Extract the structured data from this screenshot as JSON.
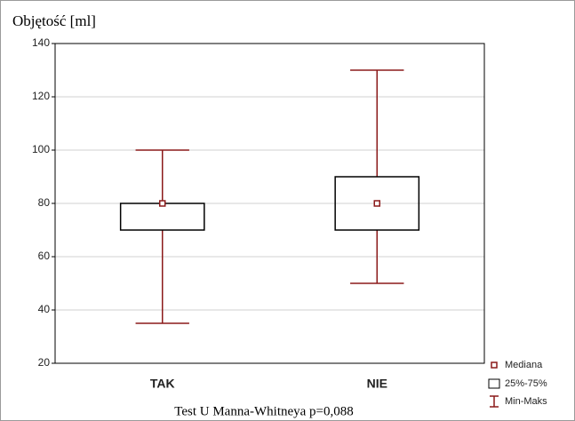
{
  "chart_data": {
    "type": "box",
    "title": "Objętość [ml]",
    "categories": [
      "TAK",
      "NIE"
    ],
    "boxes": [
      {
        "min": 35,
        "q1": 70,
        "median": 80,
        "q3": 80,
        "max": 100
      },
      {
        "min": 50,
        "q1": 70,
        "median": 80,
        "q3": 90,
        "max": 130
      }
    ],
    "color": "#8b1a1a",
    "ylim": [
      20,
      140
    ],
    "yticks": [
      20,
      40,
      60,
      80,
      100,
      120,
      140
    ],
    "grid": true,
    "legend": [
      "Mediana",
      "25%-75%",
      "Min-Maks"
    ],
    "note": "Test U Manna-Whitneya p=0,088"
  }
}
